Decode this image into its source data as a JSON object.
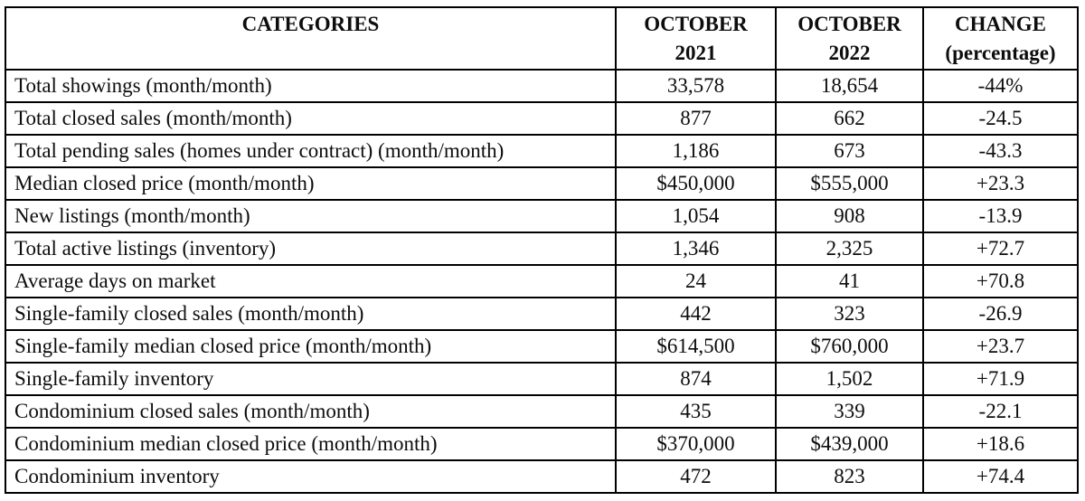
{
  "page": {
    "background_color": "#ffffff",
    "border_color": "#000000",
    "text_color": "#0d0d0d"
  },
  "table": {
    "columns": [
      {
        "id": "categories",
        "label": "CATEGORIES"
      },
      {
        "id": "oct_2021",
        "label": "OCTOBER\n2021"
      },
      {
        "id": "oct_2022",
        "label": "OCTOBER\n2022"
      },
      {
        "id": "change",
        "label": "CHANGE\n(percentage)"
      }
    ],
    "rows": [
      {
        "category": "Total showings (month/month)",
        "oct_2021": "33,578",
        "oct_2022": "18,654",
        "change": "-44%"
      },
      {
        "category": "Total closed sales (month/month)",
        "oct_2021": "877",
        "oct_2022": "662",
        "change": "-24.5"
      },
      {
        "category": "Total pending sales (homes under contract) (month/month)",
        "oct_2021": "1,186",
        "oct_2022": "673",
        "change": "-43.3"
      },
      {
        "category": "Median closed price (month/month)",
        "oct_2021": "$450,000",
        "oct_2022": "$555,000",
        "change": "+23.3"
      },
      {
        "category": "New listings (month/month)",
        "oct_2021": "1,054",
        "oct_2022": "908",
        "change": "-13.9"
      },
      {
        "category": "Total active listings (inventory)",
        "oct_2021": "1,346",
        "oct_2022": "2,325",
        "change": "+72.7"
      },
      {
        "category": "Average days on market",
        "oct_2021": "24",
        "oct_2022": "41",
        "change": "+70.8"
      },
      {
        "category": "Single-family closed sales (month/month)",
        "oct_2021": "442",
        "oct_2022": "323",
        "change": "-26.9"
      },
      {
        "category": "Single-family median closed price (month/month)",
        "oct_2021": "$614,500",
        "oct_2022": "$760,000",
        "change": "+23.7"
      },
      {
        "category": "Single-family inventory",
        "oct_2021": "874",
        "oct_2022": "1,502",
        "change": "+71.9"
      },
      {
        "category": "Condominium closed sales (month/month)",
        "oct_2021": "435",
        "oct_2022": "339",
        "change": "-22.1"
      },
      {
        "category": "Condominium median closed price (month/month)",
        "oct_2021": "$370,000",
        "oct_2022": "$439,000",
        "change": "+18.6"
      },
      {
        "category": "Condominium inventory",
        "oct_2021": "472",
        "oct_2022": "823",
        "change": "+74.4"
      }
    ]
  }
}
